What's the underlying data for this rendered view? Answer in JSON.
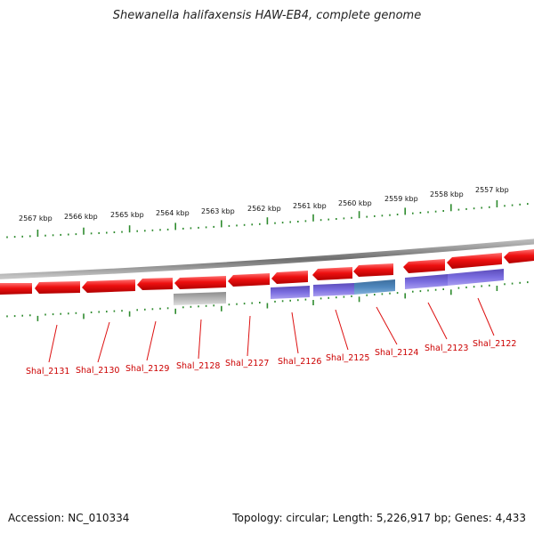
{
  "title": "Shewanella halifaxensis HAW-EB4, complete genome",
  "footer": {
    "accession": "Accession: NC_010334",
    "summary": "Topology: circular; Length: 5,226,917 bp; Genes: 4,433"
  },
  "colors": {
    "gene_forward": "#e81010",
    "gene_reverse_purple": "#6a5acd",
    "gene_reverse_blue": "#4f7fb0",
    "gene_gray": "#b3b3b3",
    "backbone": "#8a8a8a",
    "ticks": "#2e8b2e",
    "label": "#cc0000"
  },
  "kbp_labels": [
    "2567 kbp",
    "2566 kbp",
    "2565 kbp",
    "2564 kbp",
    "2563 kbp",
    "2562 kbp",
    "2561 kbp",
    "2560 kbp",
    "2559 kbp",
    "2558 kbp",
    "2557 kbp"
  ],
  "gene_labels": [
    "Shal_2131",
    "Shal_2130",
    "Shal_2129",
    "Shal_2128",
    "Shal_2127",
    "Shal_2126",
    "Shal_2125",
    "Shal_2124",
    "Shal_2123",
    "Shal_2122"
  ]
}
